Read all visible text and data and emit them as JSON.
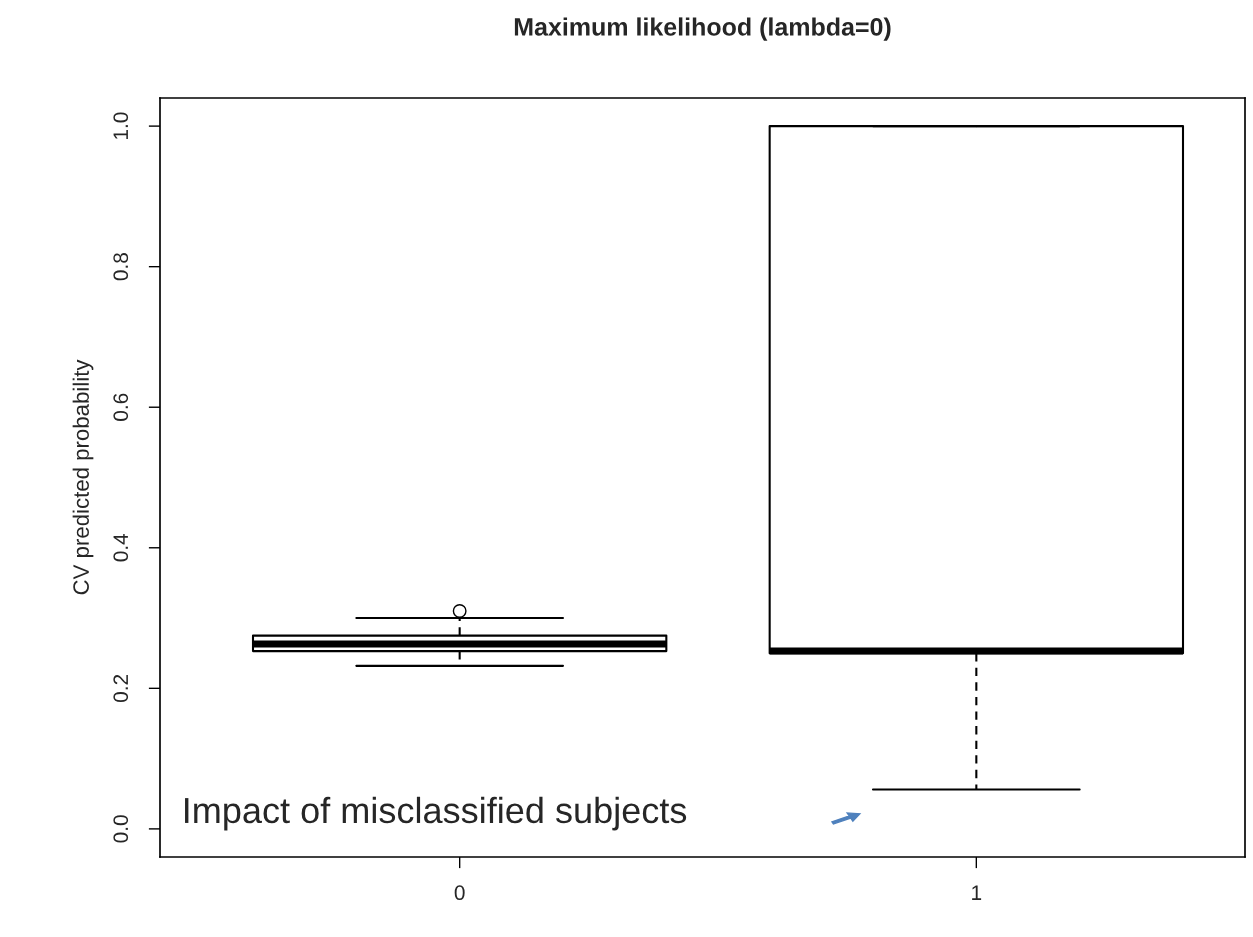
{
  "chart_data": {
    "type": "box",
    "title": "Maximum likelihood (lambda=0)",
    "ylabel": "CV predicted probability",
    "categories": [
      "0",
      "1"
    ],
    "boxes": [
      {
        "low": 0.232,
        "q1": 0.253,
        "median": 0.263,
        "q3": 0.275,
        "high": 0.3,
        "outliers": [
          0.31
        ]
      },
      {
        "low": 0.056,
        "q1": 0.25,
        "median": 0.253,
        "q3": 1.0,
        "high": 1.0
      }
    ],
    "ylim": [
      -0.04,
      1.04
    ],
    "yticks": [
      {
        "value": 0,
        "label": "0.0"
      },
      0.2,
      0.4,
      0.6,
      0.8,
      {
        "value": 1,
        "label": "1.0"
      }
    ],
    "grid": false,
    "annotations": [
      "Impact of misclassified subjects"
    ]
  }
}
